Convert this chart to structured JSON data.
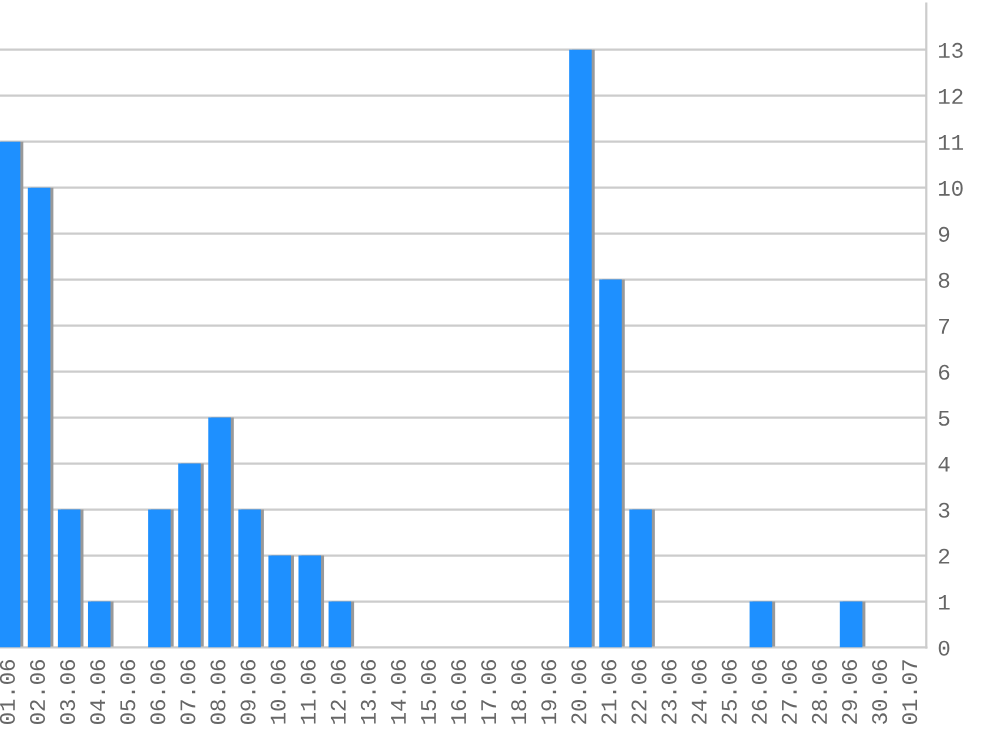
{
  "chart_data": {
    "type": "bar",
    "categories": [
      "01.06",
      "02.06",
      "03.06",
      "04.06",
      "05.06",
      "06.06",
      "07.06",
      "08.06",
      "09.06",
      "10.06",
      "11.06",
      "12.06",
      "13.06",
      "14.06",
      "15.06",
      "16.06",
      "17.06",
      "18.06",
      "19.06",
      "20.06",
      "21.06",
      "22.06",
      "23.06",
      "24.06",
      "25.06",
      "26.06",
      "27.06",
      "28.06",
      "29.06",
      "30.06",
      "01.07"
    ],
    "values": [
      11,
      10,
      3,
      1,
      0,
      3,
      4,
      5,
      3,
      2,
      2,
      1,
      0,
      0,
      0,
      0,
      0,
      0,
      0,
      13,
      8,
      3,
      0,
      0,
      0,
      1,
      0,
      0,
      1,
      0,
      0
    ],
    "color": "#1e90ff",
    "ylim": [
      0,
      14
    ],
    "yticks": [
      0,
      1,
      2,
      3,
      4,
      5,
      6,
      7,
      8,
      9,
      10,
      11,
      12,
      13
    ],
    "grid": "y",
    "legend": false
  }
}
